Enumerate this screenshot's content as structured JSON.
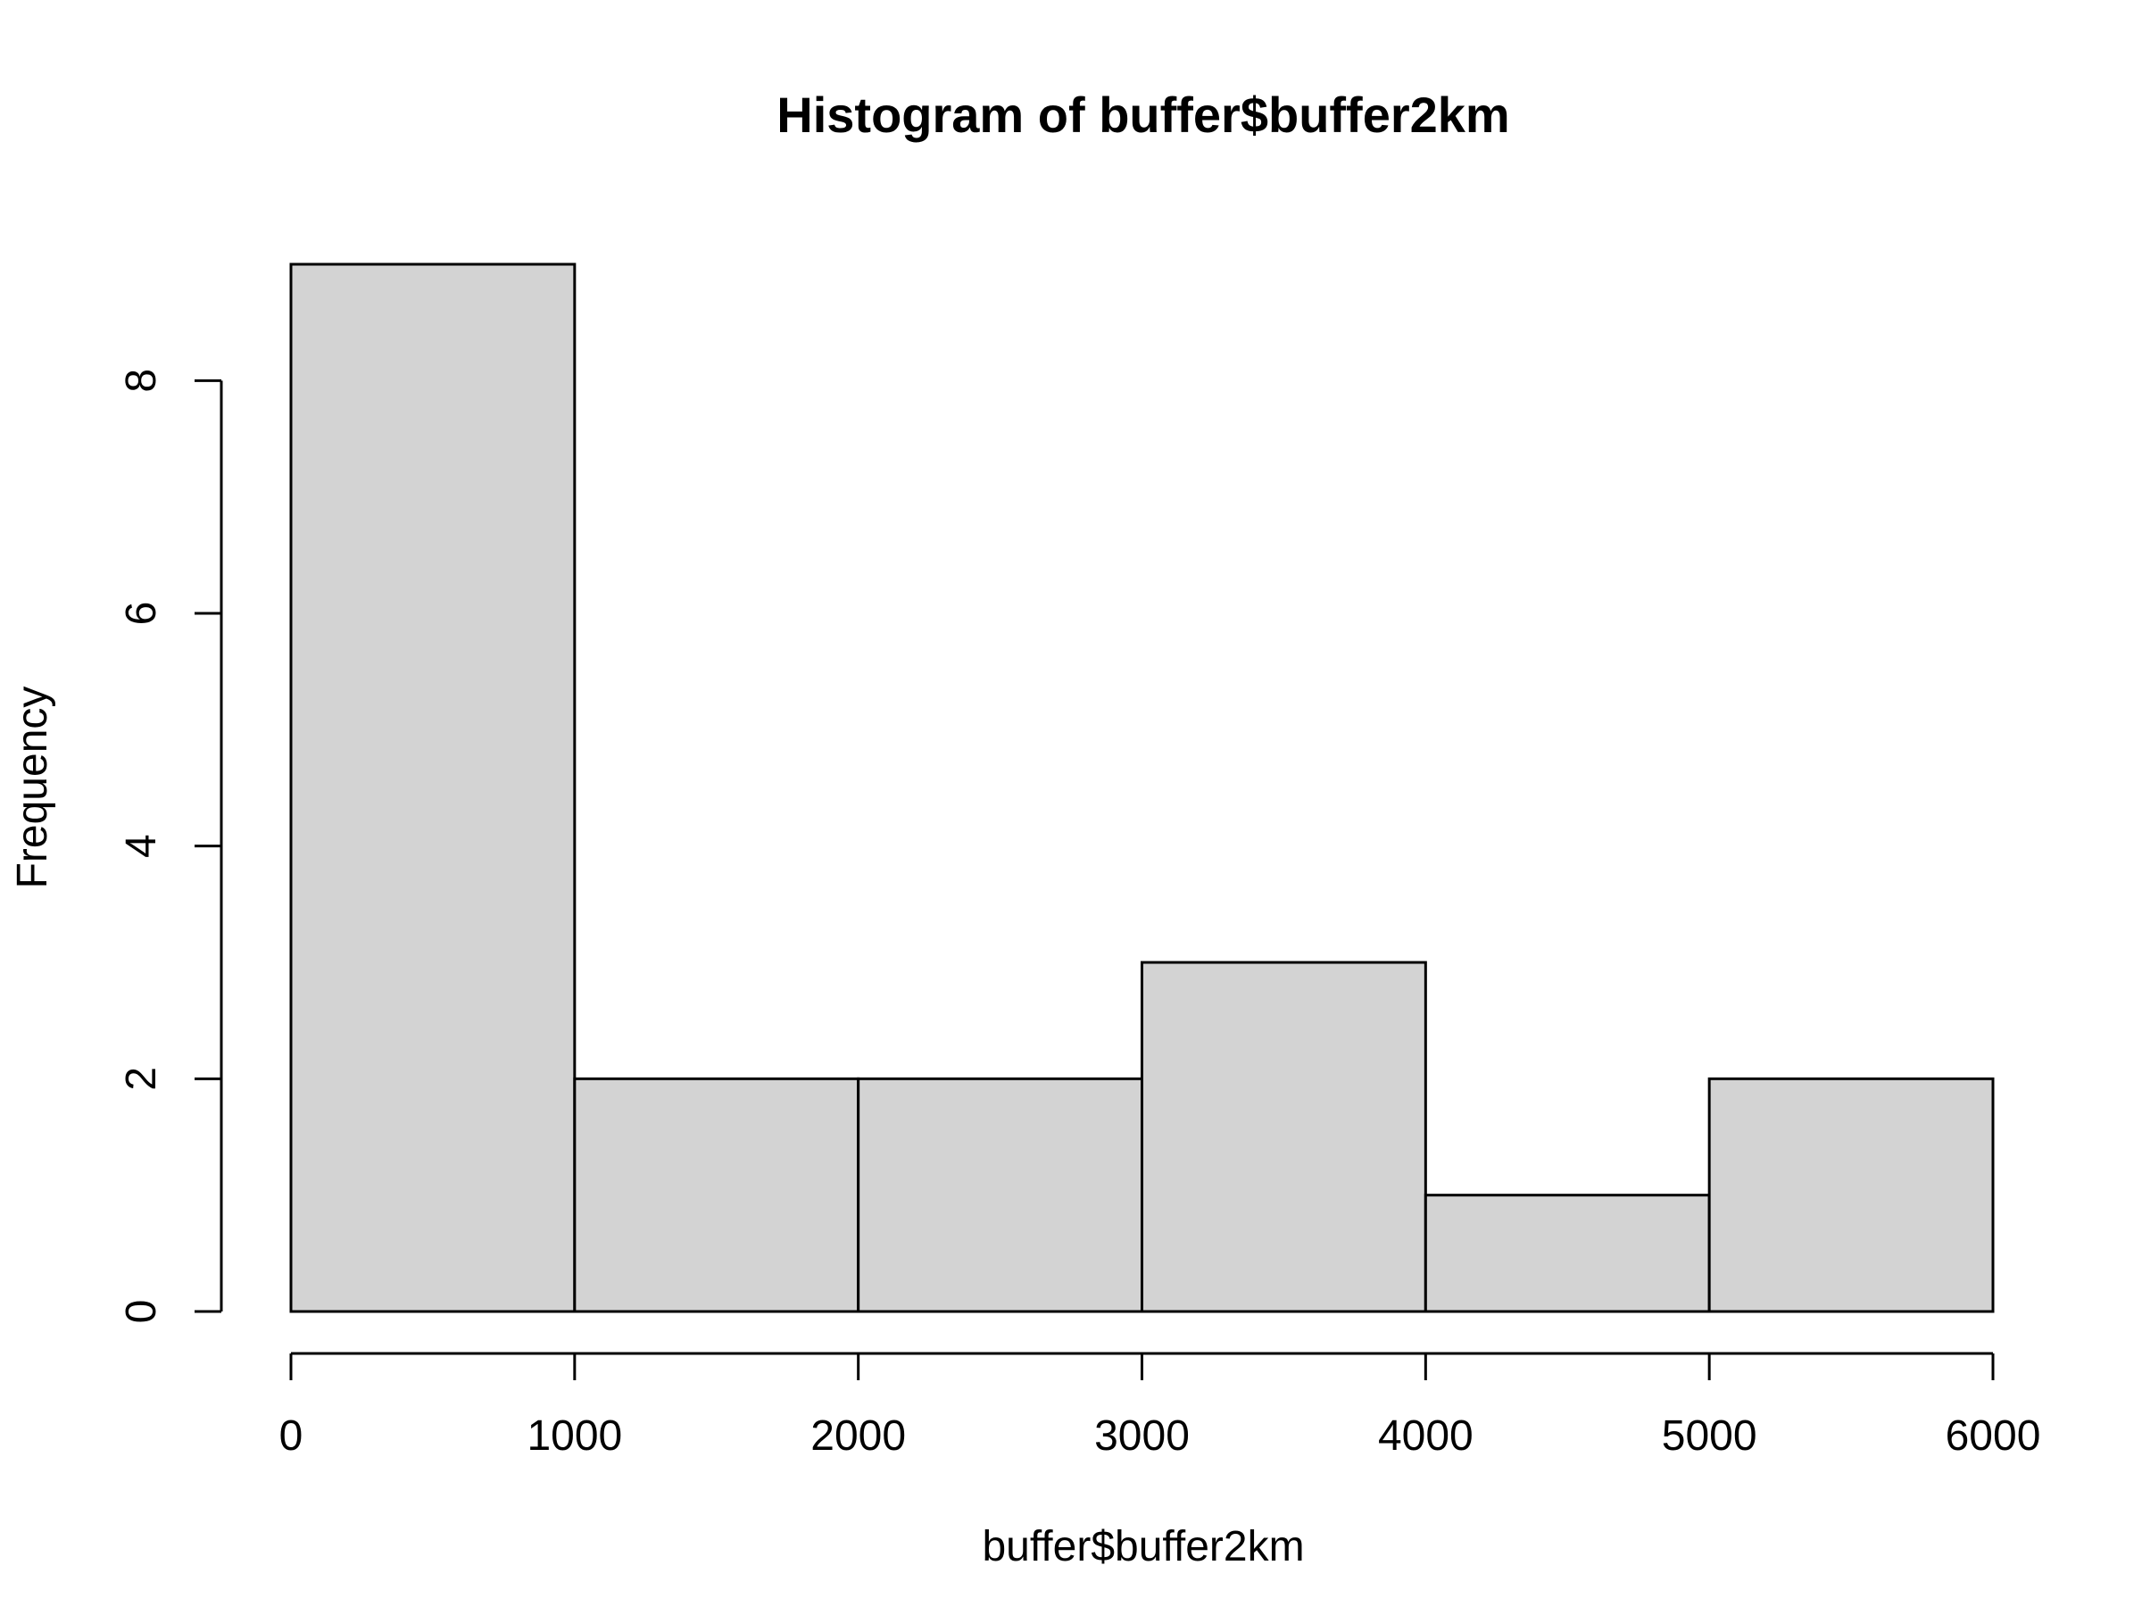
{
  "chart_data": {
    "type": "bar",
    "title": "Histogram of buffer$buffer2km",
    "xlabel": "buffer$buffer2km",
    "ylabel": "Frequency",
    "bins": [
      {
        "start": 0,
        "end": 1000,
        "count": 9
      },
      {
        "start": 1000,
        "end": 2000,
        "count": 2
      },
      {
        "start": 2000,
        "end": 3000,
        "count": 2
      },
      {
        "start": 3000,
        "end": 4000,
        "count": 3
      },
      {
        "start": 4000,
        "end": 5000,
        "count": 1
      },
      {
        "start": 5000,
        "end": 6000,
        "count": 2
      }
    ],
    "xlim": [
      0,
      6000
    ],
    "ylim": [
      0,
      9
    ],
    "x_ticks": [
      "0",
      "1000",
      "2000",
      "3000",
      "4000",
      "5000",
      "6000"
    ],
    "y_ticks": [
      "0",
      "2",
      "4",
      "6",
      "8"
    ],
    "bar_color": "#d3d3d3",
    "grid": false
  }
}
